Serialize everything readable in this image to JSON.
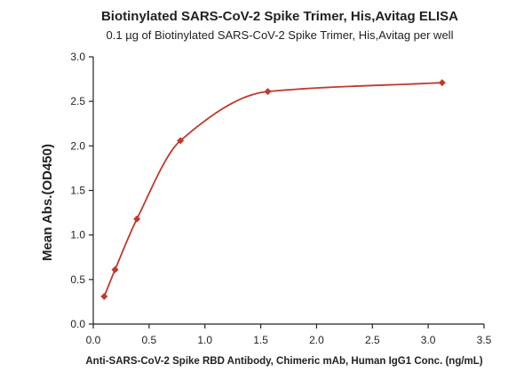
{
  "chart_data": {
    "type": "scatter",
    "title": "Biotinylated SARS-CoV-2 Spike Trimer, His,Avitag ELISA",
    "subtitle": "0.1 µg of Biotinylated SARS-CoV-2 Spike Trimer, His,Avitag per well",
    "xlabel": "Anti-SARS-CoV-2 Spike RBD Antibody, Chimeric mAb, Human IgG1 Conc. (ng/mL)",
    "ylabel": "Mean Abs.(OD450)",
    "xlim": [
      0.0,
      3.5
    ],
    "ylim": [
      0.0,
      3.0
    ],
    "x_ticks": [
      "0.0",
      "0.5",
      "1.0",
      "1.5",
      "2.0",
      "2.5",
      "3.0",
      "3.5"
    ],
    "y_ticks": [
      "0.0",
      "0.5",
      "1.0",
      "1.5",
      "2.0",
      "2.5",
      "3.0"
    ],
    "grid": false,
    "series": [
      {
        "x": [
          0.098,
          0.195,
          0.391,
          0.781,
          1.563,
          3.125
        ],
        "y": [
          0.31,
          0.61,
          1.18,
          2.06,
          2.61,
          2.71
        ],
        "color": "#c0392b",
        "marker": "diamond",
        "fit": "sigmoidal-curve"
      }
    ]
  }
}
